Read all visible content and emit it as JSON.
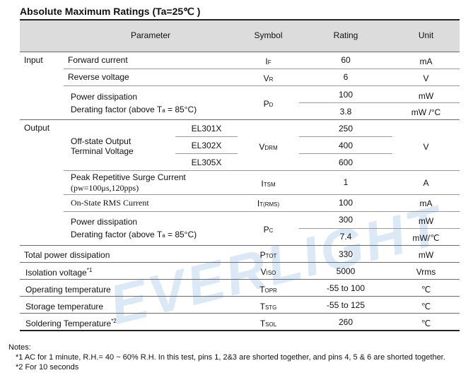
{
  "title": "Absolute Maximum Ratings (Ta=25℃ )",
  "watermark": "EVERLIGHT",
  "header": {
    "parameter": "Parameter",
    "symbol": "Symbol",
    "rating": "Rating",
    "unit": "Unit"
  },
  "groups": {
    "input": "Input",
    "output": "Output"
  },
  "rows": {
    "if": {
      "param": "Forward current",
      "sym": "I",
      "sub": "F",
      "rating": "60",
      "unit": "mA"
    },
    "vr": {
      "param": "Reverse voltage",
      "sym": "V",
      "sub": "R",
      "rating": "6",
      "unit": "V"
    },
    "pd": {
      "param1": "Power dissipation",
      "param2_pre": "Derating factor (above T",
      "param2_sub": "a",
      "param2_post": " = 85°C)",
      "sym": "P",
      "sub": "D",
      "rating1": "100",
      "unit1": "mW",
      "rating2": "3.8",
      "unit2": "mW /°C"
    },
    "vdrm": {
      "param1": "Off-state Output",
      "param2": "Terminal Voltage",
      "models": [
        "EL301X",
        "EL302X",
        "EL305X"
      ],
      "ratings": [
        "250",
        "400",
        "600"
      ],
      "sym": "V",
      "sub": "DRM",
      "unit": "V"
    },
    "itsm": {
      "param1": "Peak Repetitive Surge Current",
      "param2": "(pw=100μs,120pps)",
      "sym": "I",
      "sub": "TSM",
      "rating": "1",
      "unit": "A"
    },
    "it": {
      "param": "On-State RMS Current",
      "sym": "I",
      "sub": "T(RMS)",
      "rating": "100",
      "unit": "mA"
    },
    "pc": {
      "param1": "Power dissipation",
      "param2_pre": "Derating factor (above T",
      "param2_sub": "a",
      "param2_post": " = 85°C)",
      "sym": "P",
      "sub": "C",
      "rating1": "300",
      "unit1": "mW",
      "rating2": "7.4",
      "unit2": "mW/℃"
    },
    "ptot": {
      "param": "Total power dissipation",
      "sym": "P",
      "sub": "TOT",
      "rating": "330",
      "unit": "mW"
    },
    "viso": {
      "param": "Isolation voltage",
      "sup": "*1",
      "sym": "V",
      "sub": "ISO",
      "rating": "5000",
      "unit": "Vrms"
    },
    "topr": {
      "param": "Operating temperature",
      "sym": "T",
      "sub": "OPR",
      "rating": "-55 to 100",
      "unit": "℃"
    },
    "tstg": {
      "param": "Storage temperature",
      "sym": "T",
      "sub": "STG",
      "rating": "-55 to 125",
      "unit": "℃"
    },
    "tsol": {
      "param": "Soldering Temperature",
      "sup": "*2",
      "sym": "T",
      "sub": "SOL",
      "rating": "260",
      "unit": "℃"
    }
  },
  "notes": {
    "label": "Notes:",
    "n1": "*1 AC for 1 minute, R.H.= 40 ~ 60% R.H. In this test, pins 1, 2&3 are shorted together, and pins 4, 5 & 6 are shorted together.",
    "n2": "*2 For 10 seconds"
  }
}
